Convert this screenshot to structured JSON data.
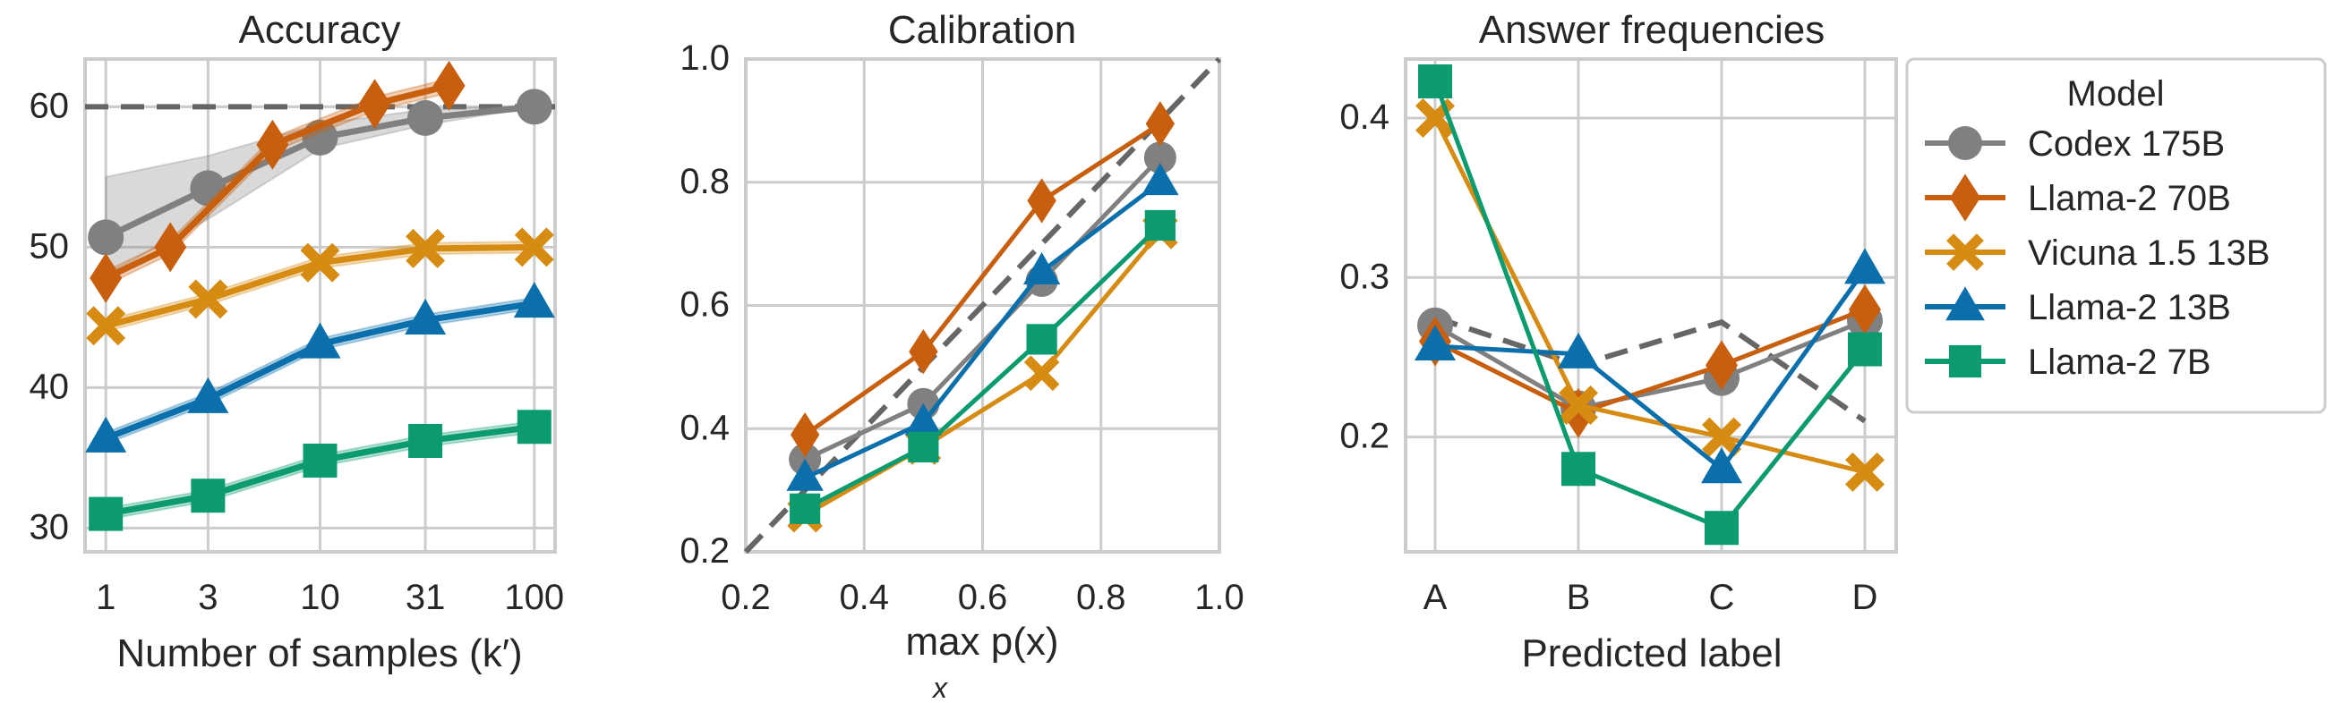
{
  "colors": {
    "Codex 175B": "#808080",
    "Llama-2 70B": "#c85f0e",
    "Vicuna 1.5 13B": "#d68c12",
    "Llama-2 13B": "#0b6fac",
    "Llama-2 7B": "#0c9a6f",
    "grid": "#cccccc",
    "ref": "#666666"
  },
  "legend": {
    "title": "Model",
    "entries": [
      "Codex 175B",
      "Llama-2 70B",
      "Vicuna 1.5 13B",
      "Llama-2 13B",
      "Llama-2 7B"
    ],
    "markers": [
      "circle",
      "diamond",
      "x",
      "triangle",
      "square"
    ],
    "placement": "right"
  },
  "chart_data": [
    {
      "type": "line",
      "title": "Accuracy",
      "xlabel": "Number of samples (k′)",
      "ylabel": "",
      "xscale": "log",
      "xlim": [
        0.8,
        125
      ],
      "ylim": [
        28.3,
        63.4
      ],
      "xticks": [
        1,
        3,
        10,
        31,
        100
      ],
      "xtick_labels": [
        "1",
        "3",
        "10",
        "31",
        "100"
      ],
      "yticks": [
        30,
        40,
        50,
        60
      ],
      "ytick_labels": [
        "30",
        "40",
        "50",
        "60"
      ],
      "reference_line": {
        "y": 60,
        "style": "dashed"
      },
      "series": [
        {
          "name": "Codex 175B",
          "x": [
            1,
            3,
            10,
            31,
            100
          ],
          "y": [
            50.7,
            54.2,
            57.8,
            59.2,
            60.0
          ],
          "ci_low": [
            48.0,
            52.0,
            57.0,
            58.7,
            60.0
          ],
          "ci_high": [
            55.0,
            56.5,
            58.8,
            59.8,
            60.1
          ]
        },
        {
          "name": "Llama-2 70B",
          "x": [
            1,
            2,
            6,
            18,
            40
          ],
          "y": [
            47.8,
            50.0,
            57.3,
            60.2,
            61.5
          ],
          "ci_halfwidth": 0.5
        },
        {
          "name": "Vicuna 1.5 13B",
          "x": [
            1,
            3,
            10,
            31,
            100
          ],
          "y": [
            44.4,
            46.3,
            48.9,
            49.9,
            50.0
          ],
          "ci_halfwidth": 0.4
        },
        {
          "name": "Llama-2 13B",
          "x": [
            1,
            3,
            10,
            31,
            100
          ],
          "y": [
            36.4,
            39.2,
            43.1,
            44.8,
            46.0
          ],
          "ci_halfwidth": 0.4
        },
        {
          "name": "Llama-2 7B",
          "x": [
            1,
            3,
            10,
            31,
            100
          ],
          "y": [
            31.0,
            32.3,
            34.8,
            36.2,
            37.2
          ],
          "ci_halfwidth": 0.4
        }
      ]
    },
    {
      "type": "line",
      "title": "Calibration",
      "xlabel": "max p(x)",
      "xlabel_sub": "x",
      "ylabel": "",
      "xlim": [
        0.2,
        1.0
      ],
      "ylim": [
        0.2,
        1.0
      ],
      "xticks": [
        0.2,
        0.4,
        0.6,
        0.8,
        1.0
      ],
      "xtick_labels": [
        "0.2",
        "0.4",
        "0.6",
        "0.8",
        "1.0"
      ],
      "yticks": [
        0.2,
        0.4,
        0.6,
        0.8,
        1.0
      ],
      "ytick_labels": [
        "0.2",
        "0.4",
        "0.6",
        "0.8",
        "1.0"
      ],
      "reference_line": {
        "diagonal": true,
        "style": "dashed"
      },
      "series": [
        {
          "name": "Codex 175B",
          "x": [
            0.3,
            0.5,
            0.7,
            0.9
          ],
          "y": [
            0.35,
            0.44,
            0.64,
            0.84
          ]
        },
        {
          "name": "Llama-2 70B",
          "x": [
            0.3,
            0.5,
            0.7,
            0.9
          ],
          "y": [
            0.39,
            0.525,
            0.77,
            0.895
          ]
        },
        {
          "name": "Vicuna 1.5 13B",
          "x": [
            0.3,
            0.5,
            0.7,
            0.9
          ],
          "y": [
            0.26,
            0.37,
            0.49,
            0.72
          ]
        },
        {
          "name": "Llama-2 13B",
          "x": [
            0.3,
            0.5,
            0.7,
            0.9
          ],
          "y": [
            0.32,
            0.41,
            0.655,
            0.8
          ]
        },
        {
          "name": "Llama-2 7B",
          "x": [
            0.3,
            0.5,
            0.7,
            0.9
          ],
          "y": [
            0.27,
            0.37,
            0.545,
            0.73
          ]
        }
      ]
    },
    {
      "type": "line",
      "title": "Answer frequencies",
      "xlabel": "Predicted label",
      "ylabel": "",
      "categories": [
        "A",
        "B",
        "C",
        "D"
      ],
      "ylim": [
        0.128,
        0.437
      ],
      "yticks": [
        0.2,
        0.3,
        0.4
      ],
      "ytick_labels": [
        "0.2",
        "0.3",
        "0.4"
      ],
      "reference_line": {
        "y": [
          0.275,
          0.245,
          0.272,
          0.21
        ],
        "style": "dashed"
      },
      "series": [
        {
          "name": "Codex 175B",
          "y": [
            0.27,
            0.218,
            0.237,
            0.273
          ]
        },
        {
          "name": "Llama-2 70B",
          "y": [
            0.26,
            0.215,
            0.245,
            0.28
          ]
        },
        {
          "name": "Vicuna 1.5 13B",
          "y": [
            0.4,
            0.22,
            0.2,
            0.178
          ]
        },
        {
          "name": "Llama-2 13B",
          "y": [
            0.257,
            0.252,
            0.18,
            0.305
          ]
        },
        {
          "name": "Llama-2 7B",
          "y": [
            0.423,
            0.18,
            0.143,
            0.255
          ]
        }
      ]
    }
  ]
}
